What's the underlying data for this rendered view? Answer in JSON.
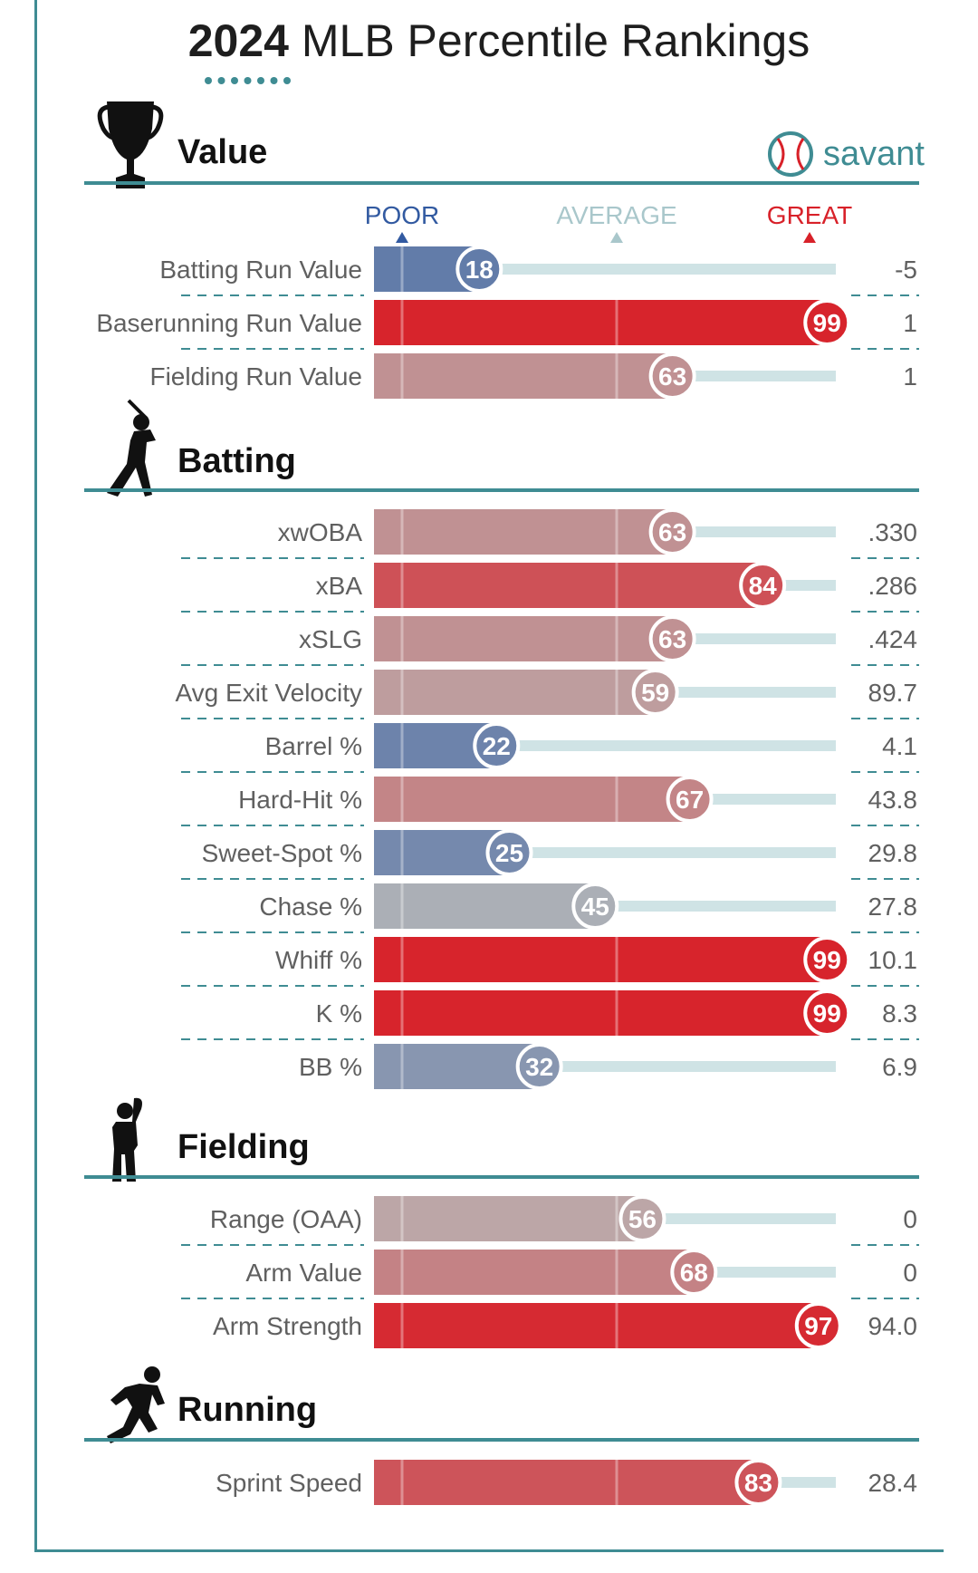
{
  "page": {
    "title_year": "2024",
    "title_rest": " MLB Percentile Rankings",
    "brand": "savant"
  },
  "scale_labels": {
    "poor": "POOR",
    "average": "AVERAGE",
    "great": "GREAT"
  },
  "colors": {
    "accent_teal": "#3f8c93",
    "poor": "#325aa1",
    "average": "#a9c7cb",
    "great": "#d82129",
    "track": "#cfe3e5",
    "label_gray": "#606060"
  },
  "chart_data": {
    "type": "bar",
    "xlim": [
      0,
      100
    ],
    "sections": [
      {
        "key": "value",
        "title": "Value",
        "icon": "trophy-icon",
        "rows": [
          {
            "label": "Batting Run Value",
            "percentile": 18,
            "value": "-5"
          },
          {
            "label": "Baserunning Run Value",
            "percentile": 99,
            "value": "1"
          },
          {
            "label": "Fielding Run Value",
            "percentile": 63,
            "value": "1"
          }
        ]
      },
      {
        "key": "batting",
        "title": "Batting",
        "icon": "batter-icon",
        "rows": [
          {
            "label": "xwOBA",
            "percentile": 63,
            "value": ".330"
          },
          {
            "label": "xBA",
            "percentile": 84,
            "value": ".286"
          },
          {
            "label": "xSLG",
            "percentile": 63,
            "value": ".424"
          },
          {
            "label": "Avg Exit Velocity",
            "percentile": 59,
            "value": "89.7"
          },
          {
            "label": "Barrel %",
            "percentile": 22,
            "value": "4.1"
          },
          {
            "label": "Hard-Hit %",
            "percentile": 67,
            "value": "43.8"
          },
          {
            "label": "Sweet-Spot %",
            "percentile": 25,
            "value": "29.8"
          },
          {
            "label": "Chase %",
            "percentile": 45,
            "value": "27.8"
          },
          {
            "label": "Whiff %",
            "percentile": 99,
            "value": "10.1"
          },
          {
            "label": "K %",
            "percentile": 99,
            "value": "8.3"
          },
          {
            "label": "BB %",
            "percentile": 32,
            "value": "6.9"
          }
        ]
      },
      {
        "key": "fielding",
        "title": "Fielding",
        "icon": "fielder-icon",
        "rows": [
          {
            "label": "Range (OAA)",
            "percentile": 56,
            "value": "0"
          },
          {
            "label": "Arm Value",
            "percentile": 68,
            "value": "0"
          },
          {
            "label": "Arm Strength",
            "percentile": 97,
            "value": "94.0"
          }
        ]
      },
      {
        "key": "running",
        "title": "Running",
        "icon": "runner-icon",
        "rows": [
          {
            "label": "Sprint Speed",
            "percentile": 83,
            "value": "28.4"
          }
        ]
      }
    ]
  }
}
